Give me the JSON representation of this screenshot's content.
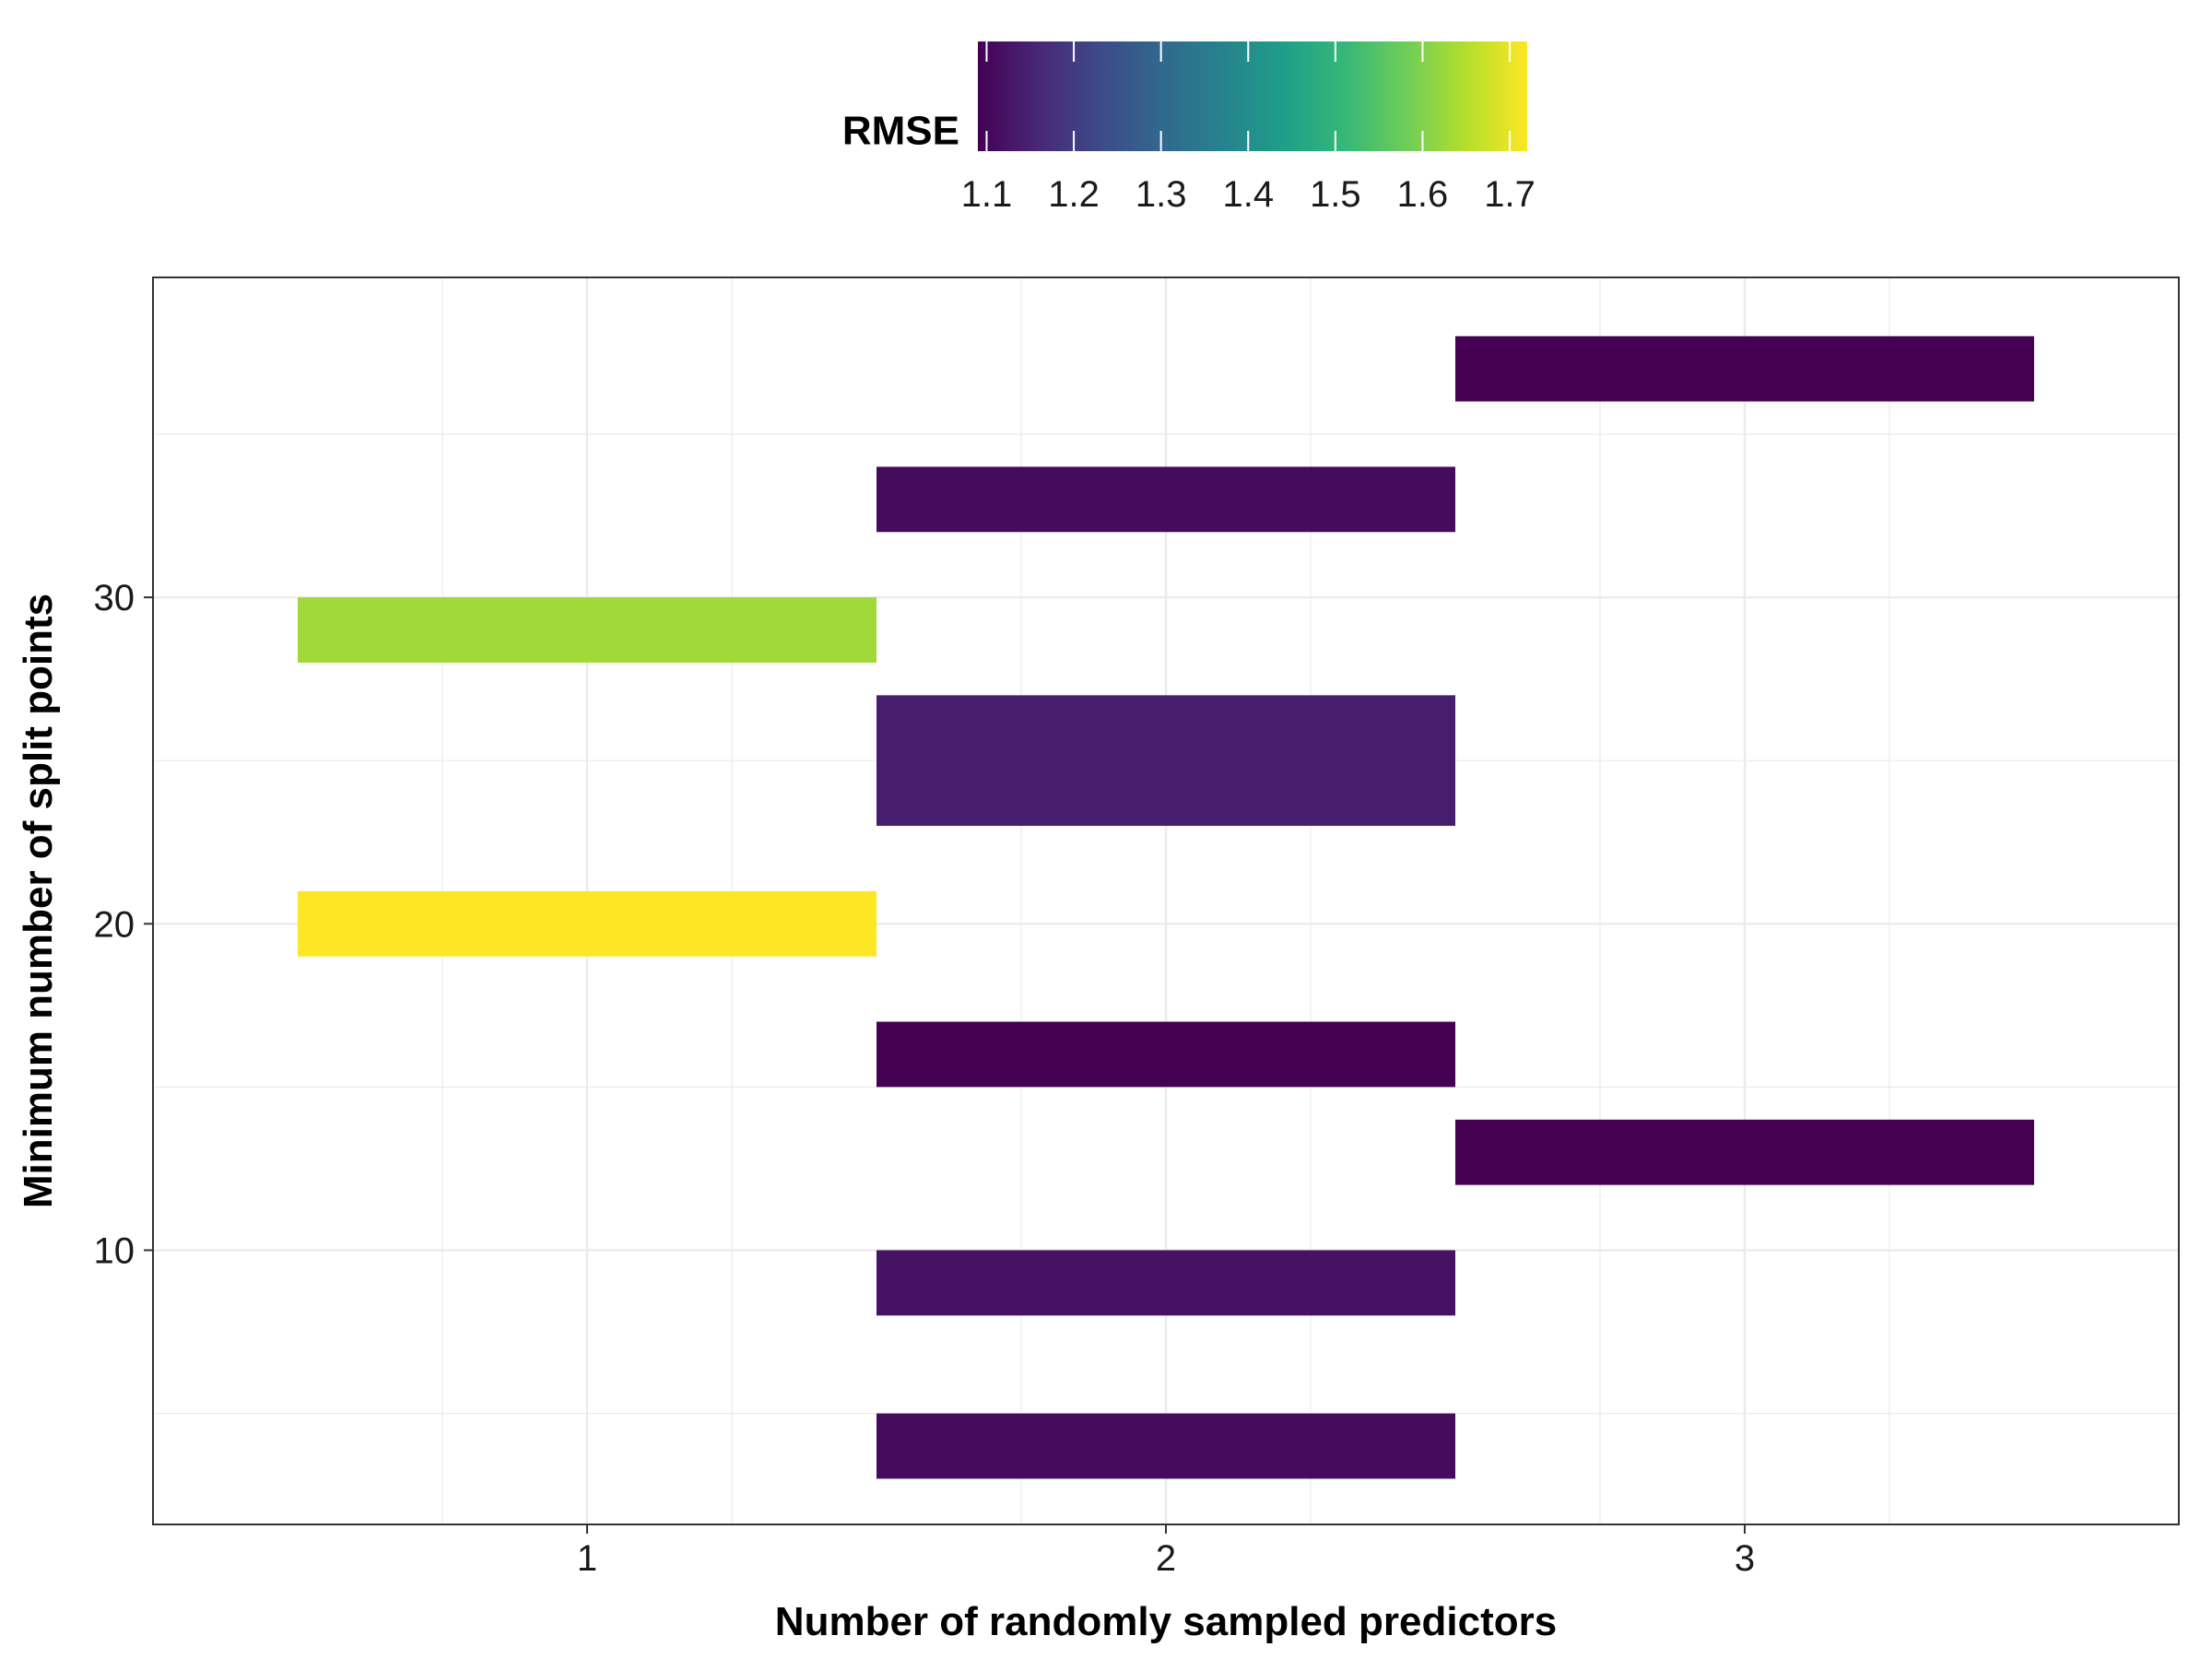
{
  "chart_data": {
    "type": "heatmap",
    "xlabel": "Number of randomly sampled predictors",
    "ylabel": "Minimum number of split points",
    "x_ticks": [
      1,
      2,
      3
    ],
    "y_ticks": [
      10,
      20,
      30
    ],
    "xlim": [
      0.25,
      3.75
    ],
    "ylim": [
      1.6,
      39.8
    ],
    "grid": true,
    "tile_width": 1,
    "cells": [
      {
        "x": 1,
        "y": 29,
        "height": 2,
        "rmse": 1.63
      },
      {
        "x": 1,
        "y": 20,
        "height": 2,
        "rmse": 1.72
      },
      {
        "x": 2,
        "y": 33,
        "height": 2,
        "rmse": 1.11
      },
      {
        "x": 2,
        "y": 25,
        "height": 4,
        "rmse": 1.14
      },
      {
        "x": 2,
        "y": 16,
        "height": 2,
        "rmse": 1.09
      },
      {
        "x": 2,
        "y": 9,
        "height": 2,
        "rmse": 1.12
      },
      {
        "x": 2,
        "y": 4,
        "height": 2,
        "rmse": 1.11
      },
      {
        "x": 3,
        "y": 37,
        "height": 2,
        "rmse": 1.09
      },
      {
        "x": 3,
        "y": 13,
        "height": 2,
        "rmse": 1.09
      }
    ],
    "legend": {
      "title": "RMSE",
      "position": "top",
      "min": 1.09,
      "max": 1.72,
      "ticks": [
        1.1,
        1.2,
        1.3,
        1.4,
        1.5,
        1.6,
        1.7
      ],
      "palette": [
        "#440154",
        "#482878",
        "#3E4A89",
        "#31688E",
        "#26828E",
        "#1F9E89",
        "#35B779",
        "#6DCD59",
        "#B4DE2C",
        "#FDE725"
      ]
    }
  }
}
